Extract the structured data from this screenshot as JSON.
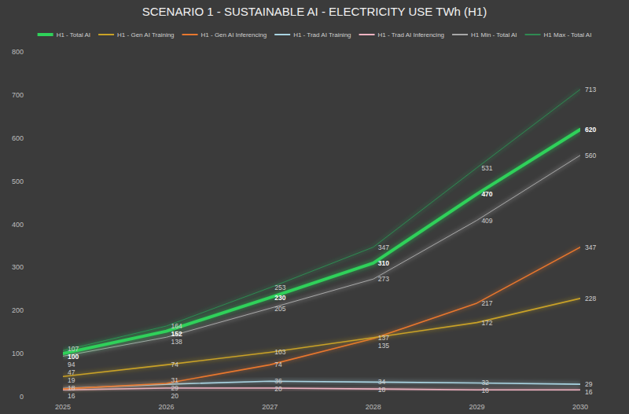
{
  "chart_data": {
    "type": "line",
    "title": "SCENARIO 1 - SUSTAINABLE AI - ELECTRICITY USE TWh (H1)",
    "categories": [
      "2025",
      "2026",
      "2027",
      "2028",
      "2029",
      "2030"
    ],
    "ylim": [
      0,
      800
    ],
    "yticks": [
      0,
      100,
      200,
      300,
      400,
      500,
      600,
      700,
      800
    ],
    "grid": false,
    "legend": "top",
    "data_labels": true,
    "series": [
      {
        "name": "H1 - Total AI",
        "color": "#2fd15a",
        "values": [
          100,
          152,
          230,
          310,
          470,
          620
        ]
      },
      {
        "name": "H1 - Gen AI Training",
        "color": "#c9a227",
        "values": [
          47,
          74,
          103,
          137,
          172,
          228
        ]
      },
      {
        "name": "H1 - Gen AI Inferencing",
        "color": "#e8772e",
        "values": [
          18,
          31,
          74,
          135,
          217,
          347
        ]
      },
      {
        "name": "H1 - Trad AI Training",
        "color": "#a9d4e2",
        "values": [
          19,
          29,
          36,
          34,
          32,
          29
        ]
      },
      {
        "name": "H1 - Trad AI Inferencing",
        "color": "#efb3c2",
        "values": [
          16,
          20,
          20,
          18,
          16,
          16
        ]
      },
      {
        "name": "H1 Min - Total AI",
        "color": "#a8a8a8",
        "values": [
          94,
          138,
          205,
          273,
          409,
          560
        ]
      },
      {
        "name": "H1 Max - Total AI",
        "color": "#2f8a52",
        "values": [
          107,
          164,
          253,
          347,
          531,
          713
        ]
      }
    ]
  }
}
